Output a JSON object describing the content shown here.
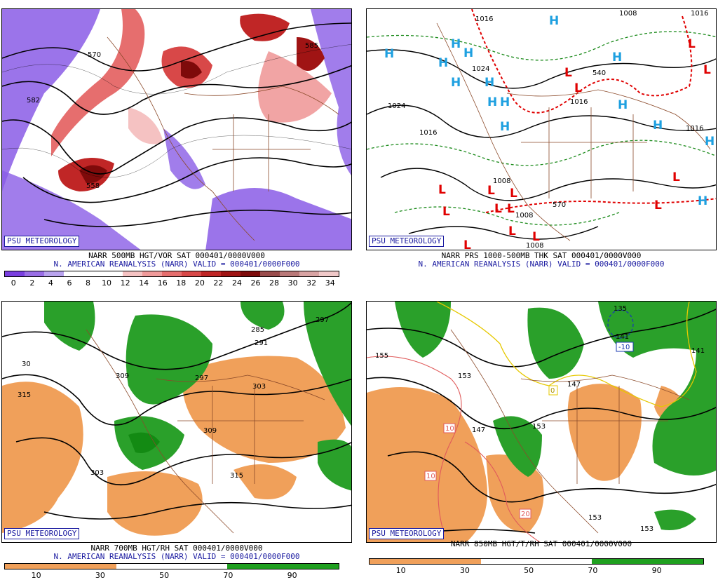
{
  "panels": [
    {
      "id": "vorticity",
      "badge": "PSU METEOROLOGY",
      "title_line1": "NARR 500MB HGT/VOR SAT 000401/0000V000",
      "title_line2": "N. AMERICAN REANALYSIS (NARR) VALID = 000401/0000F000",
      "colorbar_colors": [
        "#7a3fe0",
        "#9a6ee6",
        "#b9a3ee",
        "#ffffff",
        "#ffffff",
        "#ffffff",
        "#f5c2c2",
        "#f09a9a",
        "#e66e6e",
        "#d84848",
        "#c02626",
        "#a01414",
        "#7e0a0a",
        "#9a4c4c",
        "#b97878",
        "#d8a3a3",
        "#f0c8c8"
      ],
      "colorbar_labels": [
        "0",
        "2",
        "4",
        "6",
        "8",
        "10",
        "12",
        "14",
        "16",
        "18",
        "20",
        "22",
        "24",
        "26",
        "28",
        "30",
        "32",
        "34"
      ],
      "contour_labels": [
        "570",
        "582",
        "558",
        "585"
      ]
    },
    {
      "id": "pressure",
      "badge": "PSU METEOROLOGY",
      "title_line1": "NARR PRS 1000-500MB THK SAT 000401/0000V000",
      "title_line2": "N. AMERICAN REANALYSIS (NARR) VALID = 000401/0000F000",
      "contour_labels": [
        "1016",
        "1008",
        "1024",
        "1024",
        "1016",
        "1016",
        "1008",
        "1008",
        "1008",
        "570",
        "540",
        "1016",
        "1016"
      ],
      "high_label": "H",
      "low_label": "L"
    },
    {
      "id": "rh700",
      "badge": "PSU METEOROLOGY",
      "title_line1": "NARR 700MB HGT/RH SAT 000401/0000V000",
      "title_line2": "N. AMERICAN REANALYSIS (NARR) VALID = 000401/0000F000",
      "colorbar_colors": [
        "#f0a05a",
        "#f0a05a",
        "#f0a05a",
        "#f0a05a",
        "#ffffff",
        "#ffffff",
        "#ffffff",
        "#ffffff",
        "#1fa01f",
        "#1fa01f",
        "#1fa01f",
        "#1fa01f"
      ],
      "colorbar_labels": [
        "10",
        "30",
        "50",
        "70",
        "90"
      ],
      "contour_labels": [
        "285",
        "291",
        "297",
        "30",
        "309",
        "315",
        "303",
        "309",
        "303",
        "315",
        "297"
      ]
    },
    {
      "id": "rh850",
      "badge": "PSU METEOROLOGY",
      "title_line1": "NARR 850MB HGT/T/RH SAT 000401/0000V000",
      "title_line2": "",
      "colorbar_colors": [
        "#f0a05a",
        "#f0a05a",
        "#f0a05a",
        "#f0a05a",
        "#ffffff",
        "#ffffff",
        "#ffffff",
        "#ffffff",
        "#1fa01f",
        "#1fa01f",
        "#1fa01f",
        "#1fa01f"
      ],
      "colorbar_labels": [
        "10",
        "30",
        "50",
        "70",
        "90"
      ],
      "contour_labels": [
        "135",
        "141",
        "155",
        "153",
        "147",
        "153",
        "147",
        "153",
        "153",
        "141"
      ],
      "temp_labels": [
        "-10",
        "10",
        "10",
        "20",
        "0"
      ]
    }
  ]
}
